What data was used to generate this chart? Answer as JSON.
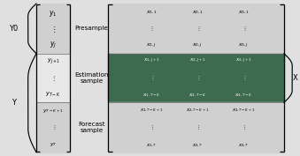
{
  "bg_color": "#e0e0e0",
  "green_color": "#4a7c59",
  "light_gray": "#cccccc",
  "presample_color": "#d0d0d0",
  "estimation_color": "#3d6b4f",
  "forecast_color": "#d0d0d0",
  "y_col_presample_color": "#d0d0d0",
  "y_col_estimation_color": "#e8e8e8",
  "y_col_forecast_color": "#d0d0d0",
  "label_presample": "Presample",
  "label_estimation": "Estimation\nsample",
  "label_forecast": "Forecast\nsample",
  "label_Y0": "Y0",
  "label_Y": "Y",
  "label_X": "X",
  "figsize": [
    3.39,
    1.77
  ],
  "dpi": 100
}
